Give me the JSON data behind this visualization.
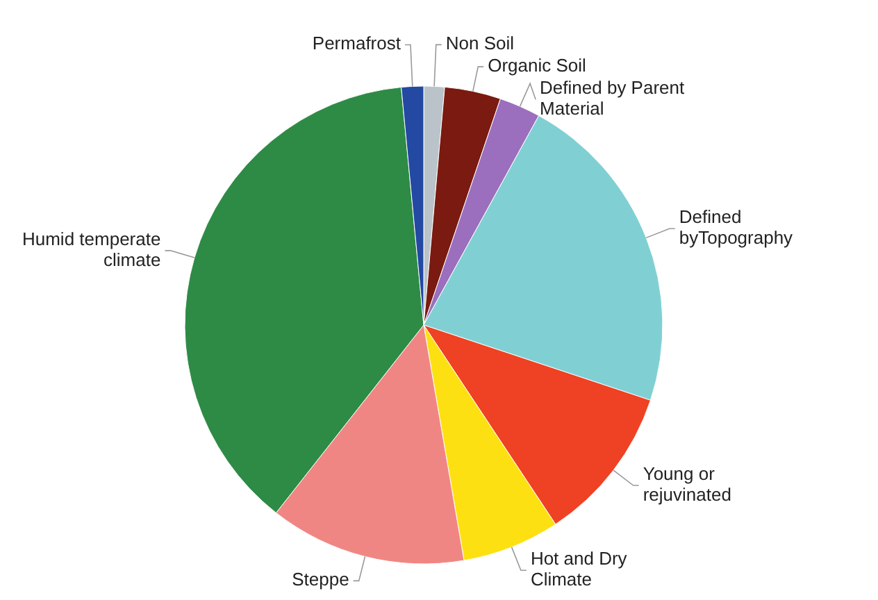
{
  "chart_data": {
    "type": "pie",
    "categories": [
      "Non Soil",
      "Organic Soil",
      "Defined by Parent Material",
      "Defined byTopography",
      "Young or rejuvinated",
      "Hot and Dry Climate",
      "Steppe",
      "Humid temperate climate",
      "Permafrost"
    ],
    "values": [
      1.4,
      3.8,
      2.8,
      22.1,
      10.6,
      6.6,
      13.3,
      37.9,
      1.5
    ],
    "colors": [
      "#b9c3c9",
      "#7a1a10",
      "#9b6fbd",
      "#80d0d3",
      "#ef4123",
      "#fde012",
      "#f08683",
      "#2e8b45",
      "#2349a3"
    ]
  }
}
